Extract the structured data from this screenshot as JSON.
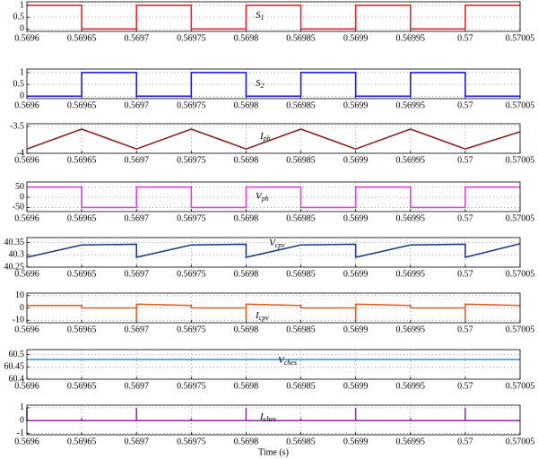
{
  "chart_data": [
    {
      "type": "line",
      "annotation": {
        "main": "S",
        "sub": "1"
      },
      "xlim": [
        0.5696,
        0.57005
      ],
      "xticks": [
        0.5696,
        0.56965,
        0.5697,
        0.56975,
        0.5698,
        0.56985,
        0.5699,
        0.56995,
        0.57,
        0.57005
      ],
      "ylim": [
        -0.1,
        1.15
      ],
      "yticks": [
        0,
        0.5,
        1
      ],
      "grid": true,
      "series": [
        {
          "color": "#e8262a",
          "x": [
            0.5696,
            0.56965,
            0.56965,
            0.5697,
            0.5697,
            0.56975,
            0.56975,
            0.5698,
            0.5698,
            0.56985,
            0.56985,
            0.5699,
            0.5699,
            0.56995,
            0.56995,
            0.57,
            0.57,
            0.57005
          ],
          "values": [
            1,
            1,
            0,
            0,
            1,
            1,
            0,
            0,
            1,
            1,
            0,
            0,
            1,
            1,
            0,
            0,
            1,
            1
          ]
        }
      ]
    },
    {
      "type": "line",
      "annotation": {
        "main": "S",
        "sub": "2"
      },
      "xlim": [
        0.5696,
        0.57005
      ],
      "xticks": [
        0.5696,
        0.56965,
        0.5697,
        0.56975,
        0.5698,
        0.56985,
        0.5699,
        0.56995,
        0.57,
        0.57005
      ],
      "ylim": [
        -0.1,
        1.15
      ],
      "yticks": [
        0,
        0.5,
        1
      ],
      "grid": true,
      "series": [
        {
          "color": "#1a1adb",
          "x": [
            0.5696,
            0.56965,
            0.56965,
            0.5697,
            0.5697,
            0.56975,
            0.56975,
            0.5698,
            0.5698,
            0.56985,
            0.56985,
            0.5699,
            0.5699,
            0.56995,
            0.56995,
            0.57,
            0.57,
            0.57005
          ],
          "values": [
            0,
            0,
            1,
            1,
            0,
            0,
            1,
            1,
            0,
            0,
            1,
            1,
            0,
            0,
            1,
            1,
            0,
            0
          ]
        }
      ]
    },
    {
      "type": "line",
      "annotation": {
        "main": "I",
        "sub": "ph"
      },
      "xlim": [
        0.5696,
        0.57005
      ],
      "xticks": [
        0.5696,
        0.56965,
        0.5697,
        0.56975,
        0.5698,
        0.56985,
        0.5699,
        0.56995,
        0.57,
        0.57005
      ],
      "ylim": [
        -4,
        -3.45
      ],
      "yticks": [
        -3.5,
        -4
      ],
      "grid": true,
      "series": [
        {
          "color": "#8b2323",
          "x": [
            0.5696,
            0.56965,
            0.5697,
            0.56975,
            0.5698,
            0.56985,
            0.5699,
            0.56995,
            0.57,
            0.57005
          ],
          "values": [
            -3.92,
            -3.55,
            -3.92,
            -3.55,
            -3.92,
            -3.55,
            -3.92,
            -3.55,
            -3.92,
            -3.6
          ]
        }
      ]
    },
    {
      "type": "line",
      "annotation": {
        "main": "V",
        "sub": "ph"
      },
      "xlim": [
        0.5696,
        0.57005
      ],
      "xticks": [
        0.5696,
        0.56965,
        0.5697,
        0.56975,
        0.5698,
        0.56985,
        0.5699,
        0.56995,
        0.57,
        0.57005
      ],
      "ylim": [
        -70,
        75
      ],
      "yticks": [
        -50,
        0,
        50
      ],
      "grid": true,
      "series": [
        {
          "color": "#e040e0",
          "x": [
            0.5696,
            0.56965,
            0.56965,
            0.5697,
            0.5697,
            0.56975,
            0.56975,
            0.5698,
            0.5698,
            0.56985,
            0.56985,
            0.5699,
            0.5699,
            0.56995,
            0.56995,
            0.57,
            0.57,
            0.57005
          ],
          "values": [
            50,
            50,
            -50,
            -50,
            50,
            50,
            -50,
            -50,
            50,
            50,
            -50,
            -50,
            50,
            50,
            -50,
            -50,
            50,
            50
          ]
        }
      ]
    },
    {
      "type": "line",
      "annotation": {
        "main": "V",
        "sub": "cpv"
      },
      "xlim": [
        0.5696,
        0.57005
      ],
      "xticks": [
        0.5696,
        0.56965,
        0.5697,
        0.56975,
        0.5698,
        0.56985,
        0.5699,
        0.56995,
        0.57,
        0.57005
      ],
      "ylim": [
        40.25,
        40.37
      ],
      "yticks": [
        40.25,
        40.3,
        40.35
      ],
      "grid": true,
      "series": [
        {
          "color": "#1f3a7a",
          "x": [
            0.5696,
            0.56965,
            0.5697,
            0.5697,
            0.56975,
            0.5698,
            0.5698,
            0.56985,
            0.5699,
            0.5699,
            0.56995,
            0.57,
            0.57,
            0.57005
          ],
          "values": [
            40.29,
            40.34,
            40.343,
            40.29,
            40.34,
            40.343,
            40.29,
            40.34,
            40.343,
            40.29,
            40.34,
            40.343,
            40.29,
            40.345
          ]
        }
      ]
    },
    {
      "type": "line",
      "annotation": {
        "main": "I",
        "sub": "cpv"
      },
      "xlim": [
        0.5696,
        0.57005
      ],
      "xticks": [
        0.5696,
        0.56965,
        0.5697,
        0.56975,
        0.5698,
        0.56985,
        0.5699,
        0.56995,
        0.57,
        0.57005
      ],
      "ylim": [
        -12,
        12
      ],
      "yticks": [
        -10,
        0,
        10
      ],
      "grid": true,
      "series": [
        {
          "color": "#d9622b",
          "x": [
            0.5696,
            0.56965,
            0.56965,
            0.5697,
            0.5697,
            0.5697,
            0.56975,
            0.56975,
            0.5698,
            0.5698,
            0.5698,
            0.56985,
            0.56985,
            0.5699,
            0.5699,
            0.5699,
            0.56995,
            0.56995,
            0.57,
            0.57,
            0.57,
            0.57005
          ],
          "values": [
            2,
            2,
            0,
            0,
            -10,
            3,
            2,
            0,
            0,
            -10,
            3,
            2,
            0,
            0,
            -10,
            3,
            2,
            0,
            0,
            -10,
            3,
            2
          ]
        }
      ]
    },
    {
      "type": "line",
      "annotation": {
        "main": "V",
        "sub": "ches"
      },
      "xlim": [
        0.5696,
        0.57005
      ],
      "xticks": [
        0.5696,
        0.56965,
        0.5697,
        0.56975,
        0.5698,
        0.56985,
        0.5699,
        0.56995,
        0.57,
        0.57005
      ],
      "ylim": [
        60.4,
        60.52
      ],
      "yticks": [
        60.4,
        60.45,
        60.5
      ],
      "grid": true,
      "series": [
        {
          "color": "#2a8fd0",
          "x": [
            0.5696,
            0.57005
          ],
          "values": [
            60.48,
            60.48
          ]
        }
      ]
    },
    {
      "type": "line",
      "annotation": {
        "main": "I",
        "sub": "ches"
      },
      "xlabel": "Time (s)",
      "xlim": [
        0.5696,
        0.57005
      ],
      "xticks": [
        0.5696,
        0.56965,
        0.5697,
        0.56975,
        0.5698,
        0.56985,
        0.5699,
        0.56995,
        0.57,
        0.57005
      ],
      "ylim": [
        -1.1,
        1.2
      ],
      "yticks": [
        -1,
        0,
        1
      ],
      "grid": true,
      "series": [
        {
          "color": "#8b3a9a",
          "x": [
            0.5696,
            0.5696,
            0.5696,
            0.56965,
            0.56965,
            0.56965,
            0.5697,
            0.5697,
            0.5697,
            0.56975,
            0.56975,
            0.56975,
            0.5698,
            0.5698,
            0.5698,
            0.56985,
            0.56985,
            0.56985,
            0.5699,
            0.5699,
            0.5699,
            0.56995,
            0.56995,
            0.56995,
            0.57,
            0.57,
            0.57,
            0.57005
          ],
          "values": [
            0,
            1,
            0,
            0,
            0.2,
            0,
            0,
            1,
            0,
            0,
            0.2,
            0,
            0,
            1,
            0,
            0,
            0.2,
            0,
            0,
            1,
            0,
            0,
            0.2,
            0,
            0,
            1,
            0,
            0
          ]
        }
      ]
    }
  ]
}
